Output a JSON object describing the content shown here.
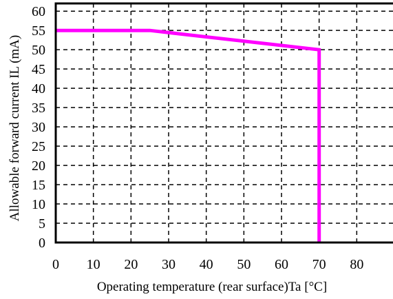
{
  "chart_data": {
    "type": "line",
    "title": "",
    "xlabel": "Operating temperature (rear surface)Ta [°C]",
    "ylabel": "Allowable forward current IL (mA)",
    "xlim": [
      0,
      90
    ],
    "ylim": [
      0,
      62
    ],
    "x_ticks": [
      "0",
      "10",
      "20",
      "30",
      "40",
      "50",
      "60",
      "70",
      "80"
    ],
    "y_ticks": [
      "0",
      "5",
      "10",
      "15",
      "20",
      "25",
      "30",
      "35",
      "40",
      "45",
      "50",
      "55",
      "60"
    ],
    "grid": "dashed",
    "legend": "none",
    "series": [
      {
        "color": "#ff00ff",
        "x": [
          0,
          25,
          70,
          70
        ],
        "y": [
          55,
          55,
          50,
          0
        ]
      }
    ]
  }
}
